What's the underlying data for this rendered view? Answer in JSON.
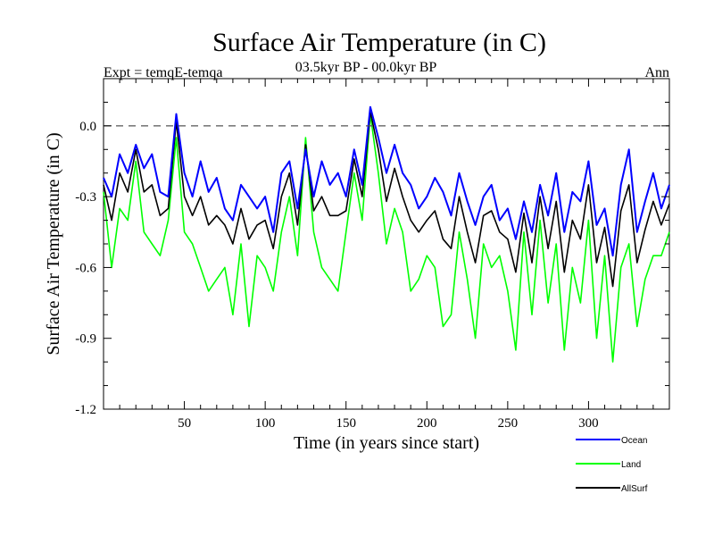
{
  "chart_data": {
    "type": "line",
    "title": "Surface Air Temperature (in C)",
    "subtitle": "03.5kyr BP - 00.0kyr BP",
    "left_annotation": "Expt = temqE-temqa",
    "right_annotation": "Ann",
    "xlabel": "Time (in years since start)",
    "ylabel": "Surface Air Temperature (in C)",
    "xlim": [
      0,
      350
    ],
    "ylim": [
      -1.2,
      0.2
    ],
    "x_ticks": [
      50,
      100,
      150,
      200,
      250,
      300
    ],
    "x_tick_labels": [
      "50",
      "100",
      "150",
      "200",
      "250",
      "300"
    ],
    "y_ticks": [
      0.0,
      -0.3,
      -0.6,
      -0.9,
      -1.2
    ],
    "y_tick_labels": [
      "0.0",
      "-0.3",
      "-0.6",
      "-0.9",
      "-1.2"
    ],
    "reference_line": 0.0,
    "legend_position": "below-right",
    "x_step": 5,
    "series": [
      {
        "name": "Ocean",
        "color": "#0000ff",
        "values": [
          -0.22,
          -0.3,
          -0.12,
          -0.2,
          -0.08,
          -0.18,
          -0.12,
          -0.28,
          -0.3,
          0.05,
          -0.2,
          -0.3,
          -0.15,
          -0.28,
          -0.22,
          -0.35,
          -0.4,
          -0.25,
          -0.3,
          -0.35,
          -0.3,
          -0.45,
          -0.2,
          -0.15,
          -0.35,
          -0.1,
          -0.3,
          -0.15,
          -0.25,
          -0.2,
          -0.3,
          -0.1,
          -0.25,
          0.08,
          -0.05,
          -0.2,
          -0.08,
          -0.2,
          -0.25,
          -0.35,
          -0.3,
          -0.22,
          -0.28,
          -0.38,
          -0.2,
          -0.32,
          -0.42,
          -0.3,
          -0.25,
          -0.4,
          -0.35,
          -0.48,
          -0.32,
          -0.45,
          -0.25,
          -0.38,
          -0.2,
          -0.45,
          -0.28,
          -0.32,
          -0.15,
          -0.42,
          -0.35,
          -0.55,
          -0.25,
          -0.1,
          -0.45,
          -0.32,
          -0.2,
          -0.35,
          -0.25
        ]
      },
      {
        "name": "Land",
        "color": "#00ff00",
        "values": [
          -0.28,
          -0.6,
          -0.35,
          -0.4,
          -0.15,
          -0.45,
          -0.5,
          -0.55,
          -0.4,
          -0.05,
          -0.45,
          -0.5,
          -0.6,
          -0.7,
          -0.65,
          -0.6,
          -0.8,
          -0.5,
          -0.85,
          -0.55,
          -0.6,
          -0.7,
          -0.45,
          -0.3,
          -0.55,
          -0.05,
          -0.45,
          -0.6,
          -0.65,
          -0.7,
          -0.45,
          -0.2,
          -0.4,
          0.05,
          -0.2,
          -0.5,
          -0.35,
          -0.45,
          -0.7,
          -0.65,
          -0.55,
          -0.6,
          -0.85,
          -0.8,
          -0.45,
          -0.65,
          -0.9,
          -0.5,
          -0.6,
          -0.55,
          -0.7,
          -0.95,
          -0.45,
          -0.8,
          -0.4,
          -0.75,
          -0.5,
          -0.95,
          -0.6,
          -0.75,
          -0.4,
          -0.9,
          -0.55,
          -1.0,
          -0.6,
          -0.5,
          -0.85,
          -0.65,
          -0.55,
          -0.55,
          -0.45
        ]
      },
      {
        "name": "AllSurf",
        "color": "#000000",
        "values": [
          -0.25,
          -0.4,
          -0.2,
          -0.28,
          -0.1,
          -0.28,
          -0.25,
          -0.38,
          -0.35,
          0.02,
          -0.3,
          -0.38,
          -0.3,
          -0.42,
          -0.38,
          -0.42,
          -0.5,
          -0.35,
          -0.48,
          -0.42,
          -0.4,
          -0.52,
          -0.3,
          -0.2,
          -0.42,
          -0.08,
          -0.36,
          -0.3,
          -0.38,
          -0.38,
          -0.36,
          -0.14,
          -0.3,
          0.06,
          -0.1,
          -0.32,
          -0.18,
          -0.3,
          -0.4,
          -0.45,
          -0.4,
          -0.36,
          -0.48,
          -0.52,
          -0.3,
          -0.45,
          -0.58,
          -0.38,
          -0.36,
          -0.45,
          -0.48,
          -0.62,
          -0.37,
          -0.58,
          -0.3,
          -0.52,
          -0.32,
          -0.62,
          -0.4,
          -0.48,
          -0.25,
          -0.58,
          -0.43,
          -0.68,
          -0.36,
          -0.25,
          -0.58,
          -0.44,
          -0.32,
          -0.42,
          -0.33
        ]
      }
    ]
  }
}
